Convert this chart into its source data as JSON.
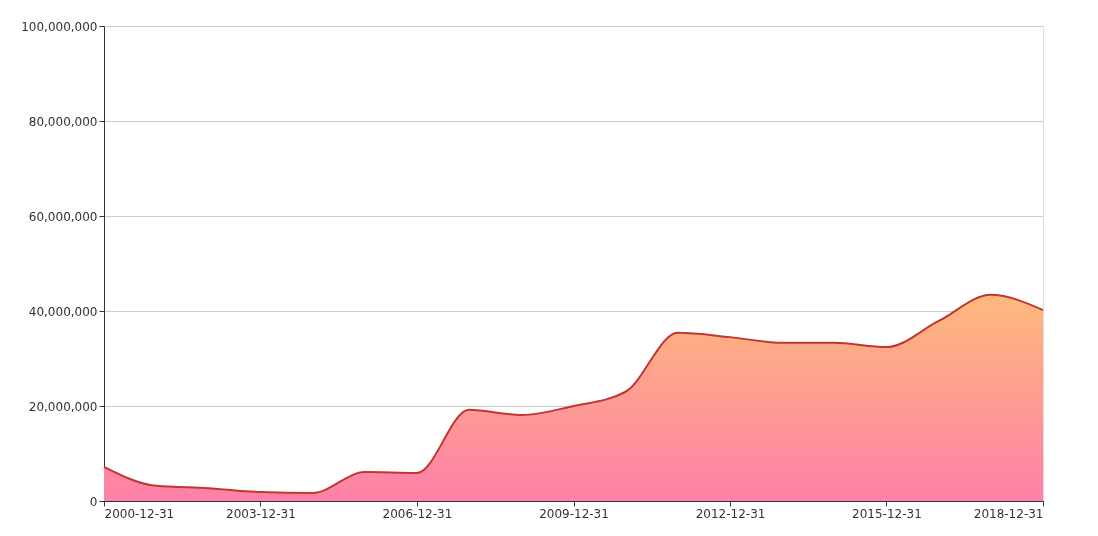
{
  "chart_data": {
    "type": "area",
    "x": [
      "2000-12-31",
      "2001-12-31",
      "2002-12-31",
      "2003-12-31",
      "2004-12-31",
      "2005-12-31",
      "2006-12-31",
      "2007-12-31",
      "2008-12-31",
      "2009-12-31",
      "2010-12-31",
      "2011-12-31",
      "2012-12-31",
      "2013-12-31",
      "2014-12-31",
      "2015-12-31",
      "2016-12-31",
      "2017-12-31",
      "2018-12-31"
    ],
    "series": [
      {
        "color": "#c23531",
        "values": [
          7200000,
          3200000,
          2700000,
          1900000,
          1700000,
          6100000,
          5900000,
          19200000,
          18100000,
          20000000,
          23000000,
          35400000,
          34500000,
          33300000,
          33300000,
          32400000,
          37900000,
          43400000,
          40200000
        ]
      }
    ],
    "xlim": [
      "2000-12-31",
      "2018-12-31"
    ],
    "xticks": [
      "2000-12-31",
      "2003-12-31",
      "2006-12-31",
      "2009-12-31",
      "2012-12-31",
      "2015-12-31",
      "2018-12-31"
    ],
    "ylim": [
      0,
      100000000
    ],
    "yticks": [
      0,
      {
        "value": 20000000,
        "label": "20,000,000"
      },
      {
        "value": 40000000,
        "label": "40,000,000"
      },
      {
        "value": 60000000,
        "label": "60,000,000"
      },
      {
        "value": 80000000,
        "label": "80,000,000"
      },
      {
        "value": 100000000,
        "label": "100,000,000"
      }
    ],
    "grid": "y"
  }
}
